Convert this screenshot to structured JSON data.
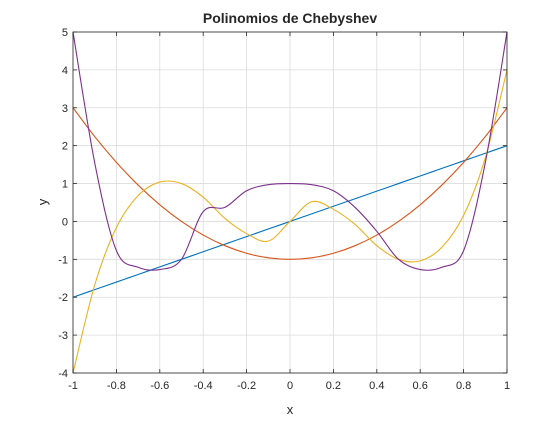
{
  "chart_data": {
    "type": "line",
    "title": "Polinomios de Chebyshev",
    "xlabel": "x",
    "ylabel": "y",
    "xlim": [
      -1,
      1
    ],
    "ylim": [
      -4,
      5
    ],
    "grid": true,
    "xticks": [
      -1,
      -0.8,
      -0.6,
      -0.4,
      -0.2,
      0,
      0.2,
      0.4,
      0.6,
      0.8,
      1
    ],
    "xtick_labels": [
      "-1",
      "-0.8",
      "-0.6",
      "-0.4",
      "-0.2",
      "0",
      "0.2",
      "0.4",
      "0.6",
      "0.8",
      "1"
    ],
    "yticks": [
      -4,
      -3,
      -2,
      -1,
      0,
      1,
      2,
      3,
      4,
      5
    ],
    "ytick_labels": [
      "-4",
      "-3",
      "-2",
      "-1",
      "0",
      "1",
      "2",
      "3",
      "4",
      "5"
    ],
    "x": [
      -1,
      -0.9,
      -0.8,
      -0.7,
      -0.6,
      -0.5,
      -0.4,
      -0.3,
      -0.2,
      -0.1,
      0,
      0.1,
      0.2,
      0.3,
      0.4,
      0.5,
      0.6,
      0.7,
      0.8,
      0.9,
      1
    ],
    "series": [
      {
        "color": "#0072BD",
        "values": [
          -2,
          -1.8,
          -1.6,
          -1.4,
          -1.2,
          -1,
          -0.8,
          -0.6,
          -0.4,
          -0.2,
          0,
          0.2,
          0.4,
          0.6,
          0.8,
          1,
          1.2,
          1.4,
          1.6,
          1.8,
          2
        ]
      },
      {
        "color": "#D95319",
        "values": [
          3,
          2.24,
          1.56,
          0.96,
          0.44,
          0,
          -0.36,
          -0.64,
          -0.84,
          -0.96,
          -1,
          -0.96,
          -0.84,
          -0.64,
          -0.36,
          0,
          0.44,
          0.96,
          1.56,
          2.24,
          3
        ]
      },
      {
        "color": "#EDB120",
        "values": [
          -4,
          -1.68,
          -0.16,
          0.68,
          1.04,
          1,
          0.64,
          0.08,
          -0.32,
          -0.52,
          0,
          0.52,
          0.32,
          -0.08,
          -0.64,
          -1,
          -1.04,
          -0.68,
          0.16,
          1.68,
          4
        ]
      },
      {
        "color": "#7E2F8E",
        "values": [
          5,
          1.55,
          -0.77,
          -1.21,
          -1.27,
          -1,
          0.26,
          0.37,
          0.81,
          0.97,
          1,
          0.97,
          0.81,
          0.37,
          -0.26,
          -1,
          -1.27,
          -1.21,
          -0.77,
          1.55,
          5
        ]
      }
    ]
  }
}
